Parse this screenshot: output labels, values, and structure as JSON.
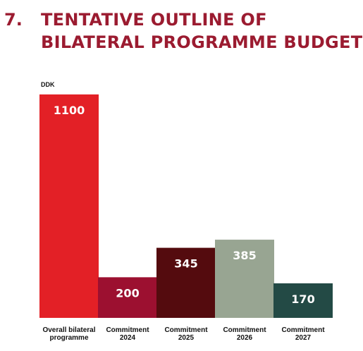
{
  "heading": {
    "number": "7.",
    "title_line1": "TENTATIVE OUTLINE OF",
    "title_line2": "BILATERAL PROGRAMME BUDGET"
  },
  "colors": {
    "heading": "#9b1b30"
  },
  "chart_data": {
    "type": "bar",
    "unit": "DDK",
    "categories": [
      [
        "Overall bilateral",
        "programme"
      ],
      [
        "Commitment",
        "2024"
      ],
      [
        "Commitment",
        "2025"
      ],
      [
        "Commitment",
        "2026"
      ],
      [
        "Commitment",
        "2027"
      ]
    ],
    "values": [
      1100,
      200,
      345,
      385,
      170
    ],
    "data_labels": [
      "1100",
      "200",
      "345",
      "385",
      "170"
    ],
    "colors": [
      "#e32026",
      "#9c1030",
      "#540b0e",
      "#98a592",
      "#234a45"
    ],
    "ylim": [
      0,
      1100
    ],
    "grid": false,
    "legend": "none"
  }
}
